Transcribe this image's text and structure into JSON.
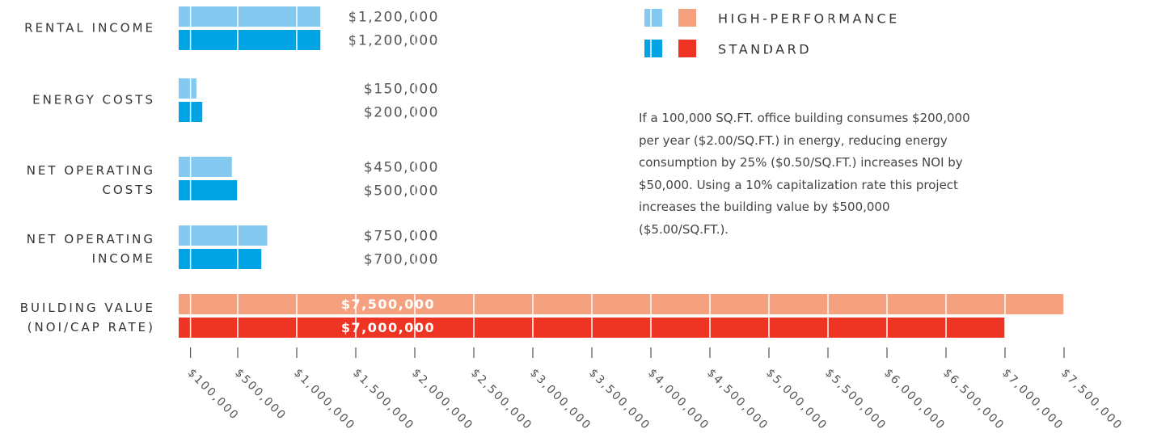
{
  "chart_data": {
    "type": "hbar",
    "categories": [
      "RENTAL INCOME",
      "ENERGY COSTS",
      "NET OPERATING\nCOSTS",
      "NET OPERATING\nINCOME",
      "BUILDING VALUE\n(NOI/CAP RATE)"
    ],
    "series": [
      {
        "name": "HIGH-PERFORMANCE",
        "color": "#84caf0",
        "highlight_color": "#f5a17f",
        "values": [
          1200000,
          150000,
          450000,
          750000,
          7500000
        ],
        "value_labels": [
          "$1,200,000",
          "$150,000",
          "$450,000",
          "$750,000",
          "$7,500,000"
        ]
      },
      {
        "name": "STANDARD",
        "color": "#00a4e4",
        "highlight_color": "#ee3524",
        "values": [
          1200000,
          200000,
          500000,
          700000,
          7000000
        ],
        "value_labels": [
          "$1,200,000",
          "$200,000",
          "$500,000",
          "$700,000",
          "$7,000,000"
        ]
      }
    ],
    "highlight_category": 4,
    "xlim": [
      0,
      7500000
    ],
    "xticks": [
      {
        "value": 100000,
        "label": "$100,000"
      },
      {
        "value": 500000,
        "label": "$500,000"
      },
      {
        "value": 1000000,
        "label": "$1,000,000"
      },
      {
        "value": 1500000,
        "label": "$1,500,000"
      },
      {
        "value": 2000000,
        "label": "$2,000,000"
      },
      {
        "value": 2500000,
        "label": "$2,500,000"
      },
      {
        "value": 3000000,
        "label": "$3,000,000"
      },
      {
        "value": 3500000,
        "label": "$3,500,000"
      },
      {
        "value": 4000000,
        "label": "$4,000,000"
      },
      {
        "value": 4500000,
        "label": "$4,500,000"
      },
      {
        "value": 5000000,
        "label": "$5,000,000"
      },
      {
        "value": 5500000,
        "label": "$5,500,000"
      },
      {
        "value": 6000000,
        "label": "$6,000,000"
      },
      {
        "value": 6500000,
        "label": "$6,500,000"
      },
      {
        "value": 7000000,
        "label": "$7,000,000"
      },
      {
        "value": 7500000,
        "label": "$7,500,000"
      }
    ],
    "grid": true,
    "annotation": "If a 100,000 SQ.FT. office building consumes $200,000 per year ($2.00/SQ.FT.) in energy, reducing energy consumption by 25% ($0.50/SQ.FT.) increases NOI by $50,000. Using a 10% capitalization rate this project increases the building value by $500,000 ($5.00/SQ.FT.)."
  }
}
